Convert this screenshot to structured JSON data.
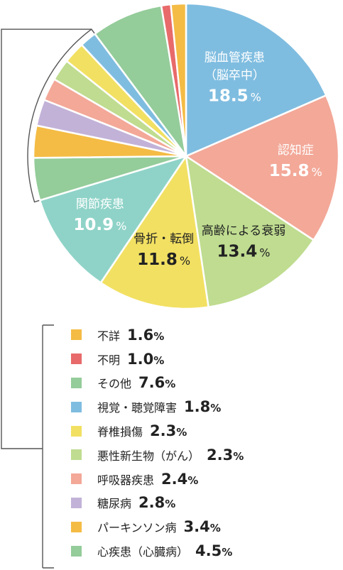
{
  "chart_data": {
    "type": "pie",
    "title": "",
    "unit": "%",
    "slices": [
      {
        "label": "脳血管疾患",
        "sublabel": "（脳卒中）",
        "value": 18.5,
        "value_text": "18.5",
        "color": "#7fbde0",
        "text_color": "#ffffff"
      },
      {
        "label": "認知症",
        "value": 15.8,
        "value_text": "15.8",
        "color": "#f3a898",
        "text_color": "#ffffff"
      },
      {
        "label": "高齢による衰弱",
        "value": 13.4,
        "value_text": "13.4",
        "color": "#bfdc90",
        "text_color": "#222222"
      },
      {
        "label": "骨折・転倒",
        "value": 11.8,
        "value_text": "11.8",
        "color": "#f2e062",
        "text_color": "#222222"
      },
      {
        "label": "関節疾患",
        "value": 10.9,
        "value_text": "10.9",
        "color": "#8fd3c8",
        "text_color": "#ffffff"
      },
      {
        "label": "心疾患（心臓病）",
        "value": 4.5,
        "value_text": "4.5",
        "color": "#94cc9a"
      },
      {
        "label": "パーキンソン病",
        "value": 3.4,
        "value_text": "3.4",
        "color": "#f4bc45"
      },
      {
        "label": "糖尿病",
        "value": 2.8,
        "value_text": "2.8",
        "color": "#c2b2d8"
      },
      {
        "label": "呼吸器疾患",
        "value": 2.4,
        "value_text": "2.4",
        "color": "#f3a898"
      },
      {
        "label": "悪性新生物（がん）",
        "value": 2.3,
        "value_text": "2.3",
        "color": "#bfdc90"
      },
      {
        "label": "脊椎損傷",
        "value": 2.3,
        "value_text": "2.3",
        "color": "#f2e062"
      },
      {
        "label": "視覚・聴覚障害",
        "value": 1.8,
        "value_text": "1.8",
        "color": "#7fbde0"
      },
      {
        "label": "その他",
        "value": 7.6,
        "value_text": "7.6",
        "color": "#94cc9a"
      },
      {
        "label": "不明",
        "value": 1.0,
        "value_text": "1.0",
        "color": "#e86a6a"
      },
      {
        "label": "不詳",
        "value": 1.6,
        "value_text": "1.6",
        "color": "#f4bc45"
      }
    ],
    "legend_order": [
      14,
      13,
      12,
      11,
      10,
      9,
      8,
      7,
      6,
      5
    ],
    "legend_placement": "bottom",
    "bracket_color": "#555555"
  }
}
